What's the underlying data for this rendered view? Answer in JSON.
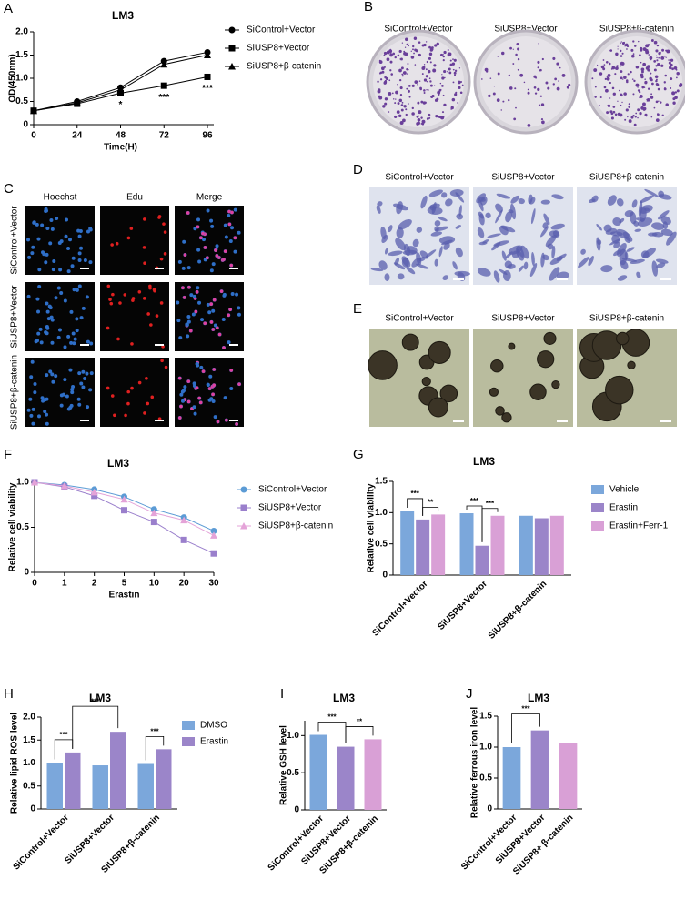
{
  "chart_data": [
    {
      "panel_label": "A",
      "type": "line",
      "title": "LM3",
      "x_label": "Time(H)",
      "y_label": "OD(450nm)",
      "x": [
        0,
        24,
        48,
        72,
        96
      ],
      "xlim": [
        0,
        96
      ],
      "xticks": [
        0,
        24,
        48,
        72,
        96
      ],
      "ylim": [
        0,
        2
      ],
      "yticks": [
        0,
        0.5,
        {
          "value": 1,
          "label": "1.0"
        },
        1.5,
        {
          "value": 2,
          "label": "2.0"
        }
      ],
      "series": [
        {
          "name": "SiControl+Vector",
          "color": "#000000",
          "marker": "circle",
          "values": [
            0.3,
            0.5,
            0.8,
            1.37,
            1.56
          ]
        },
        {
          "name": "SiUSP8+Vector",
          "color": "#000000",
          "marker": "square",
          "values": [
            0.3,
            0.45,
            0.68,
            0.84,
            1.03
          ]
        },
        {
          "name": "SiUSP8+β-catenin",
          "color": "#000000",
          "marker": "triangle",
          "values": [
            0.3,
            0.47,
            0.75,
            1.3,
            1.5
          ]
        }
      ],
      "annotations": [
        "*",
        "***",
        "***"
      ]
    },
    {
      "panel_label": "F",
      "type": "line",
      "title": "LM3",
      "x_label": "Erastin",
      "y_label": "Relative cell viability",
      "categories": [
        "0",
        "1",
        "2",
        "5",
        "10",
        "20",
        "30"
      ],
      "ylim": [
        0,
        1
      ],
      "yticks": [
        0,
        0.5,
        {
          "value": 1,
          "label": "1.0"
        }
      ],
      "series": [
        {
          "name": "SiControl+Vector",
          "color": "#5b9bd5",
          "marker": "circle",
          "values": [
            1.0,
            0.97,
            0.92,
            0.84,
            0.7,
            0.61,
            0.46
          ]
        },
        {
          "name": "SiUSP8+Vector",
          "color": "#9a7fcc",
          "marker": "square",
          "values": [
            1.0,
            0.95,
            0.85,
            0.69,
            0.56,
            0.36,
            0.21
          ]
        },
        {
          "name": "SiUSP8+β-catenin",
          "color": "#e4a3d8",
          "marker": "triangle",
          "values": [
            1.0,
            0.96,
            0.89,
            0.81,
            0.66,
            0.58,
            0.41
          ]
        }
      ]
    },
    {
      "panel_label": "G",
      "type": "bar",
      "title": "LM3",
      "y_label": "Relative cell viability",
      "categories": [
        "SiControl+Vector",
        "SiUSP8+Vector",
        "SiUSP8+β-catenin"
      ],
      "ylim": [
        0,
        1.5
      ],
      "yticks": [
        0,
        0.5,
        {
          "value": 1,
          "label": "1.0"
        },
        1.5
      ],
      "series": [
        {
          "name": "Vehicle",
          "color": "#7ba7db",
          "values": [
            1.02,
            0.99,
            0.95
          ]
        },
        {
          "name": "Erastin",
          "color": "#9b85c9",
          "values": [
            0.89,
            0.47,
            0.91
          ]
        },
        {
          "name": "Erastin+Ferr-1",
          "color": "#d9a0d6",
          "values": [
            0.97,
            0.95,
            0.95
          ]
        }
      ],
      "annotations": [
        "***",
        "**",
        "***",
        "***"
      ]
    },
    {
      "panel_label": "H",
      "type": "bar",
      "title": "LM3",
      "y_label": "Relative lipid ROS level",
      "categories": [
        "SiControl+Vector",
        "SiUSP8+Vector",
        "SiUSP8+β-catenin"
      ],
      "ylim": [
        0,
        2
      ],
      "yticks": [
        0,
        0.5,
        {
          "value": 1,
          "label": "1.0"
        },
        1.5,
        {
          "value": 2,
          "label": "2.0"
        }
      ],
      "series": [
        {
          "name": "DMSO",
          "color": "#7ba7db",
          "values": [
            1.0,
            0.95,
            0.98
          ]
        },
        {
          "name": "Erastin",
          "color": "#9b85c9",
          "values": [
            1.23,
            1.68,
            1.3
          ]
        }
      ],
      "annotations": [
        "***",
        "***",
        "***"
      ]
    },
    {
      "panel_label": "I",
      "type": "bar",
      "title": "LM3",
      "y_label": "Relative GSH level",
      "categories": [
        "SiControl+Vector",
        "SiUSP8+Vector",
        "SiUSP8+β-catenin"
      ],
      "values": [
        1.01,
        0.85,
        0.95
      ],
      "colors": [
        "#7ba7db",
        "#9b85c9",
        "#d9a0d6"
      ],
      "ylim": [
        0,
        1.2
      ],
      "yticks": [
        0,
        0.5,
        {
          "value": 1,
          "label": "1.0"
        }
      ],
      "annotations": [
        "***",
        "**"
      ]
    },
    {
      "panel_label": "J",
      "type": "bar",
      "title": "LM3",
      "y_label": "Relative ferrous iron level",
      "categories": [
        "SiControl+Vector",
        "SiUSP8+Vector",
        "SiUSP8+ β-catenin"
      ],
      "values": [
        1.0,
        1.27,
        1.06
      ],
      "colors": [
        "#7ba7db",
        "#9b85c9",
        "#d9a0d6"
      ],
      "ylim": [
        0,
        1.5
      ],
      "yticks": [
        0,
        0.5,
        {
          "value": 1,
          "label": "1.0"
        },
        1.5
      ],
      "annotations": [
        "***"
      ]
    }
  ],
  "image_panels": [
    {
      "panel_label": "B",
      "labels": [
        "SiControl+Vector",
        "SiUSP8+Vector",
        "SiUSP8+β-catenin"
      ]
    },
    {
      "panel_label": "C",
      "columns": [
        "Hoechst",
        "Edu",
        "Merge"
      ],
      "rows": [
        "SiControl+Vector",
        "SiUSP8+Vector",
        "SiUSP8+β-catenin"
      ]
    },
    {
      "panel_label": "D",
      "labels": [
        "SiControl+Vector",
        "SiUSP8+Vector",
        "SiUSP8+β-catenin"
      ]
    },
    {
      "panel_label": "E",
      "labels": [
        "SiControl+Vector",
        "SiUSP8+Vector",
        "SiUSP8+β-catenin"
      ]
    }
  ]
}
